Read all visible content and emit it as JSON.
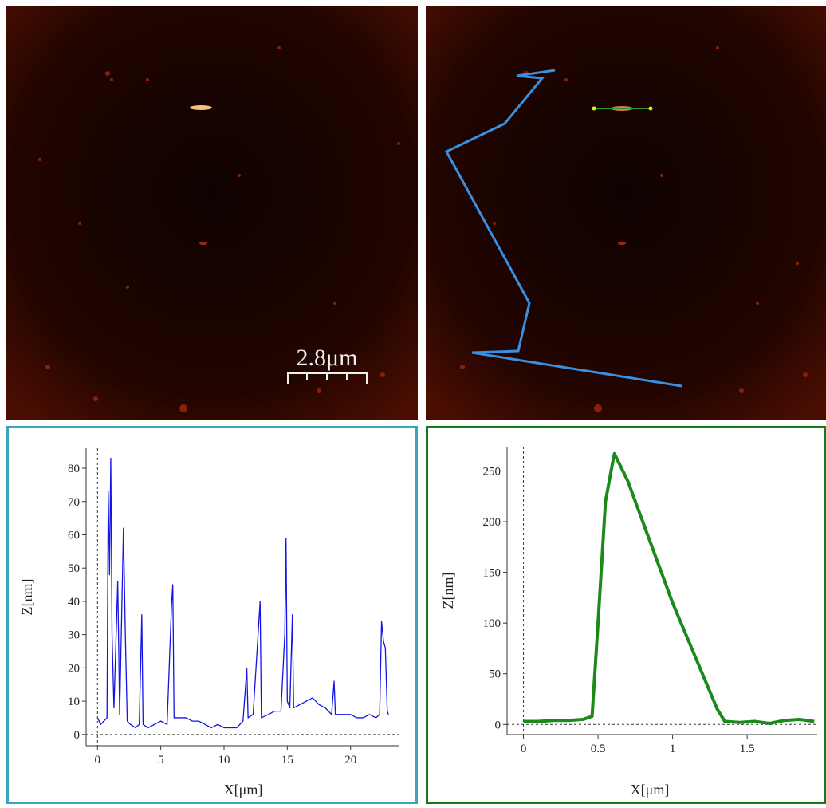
{
  "images": {
    "scale_bar_label": "2.8μm"
  },
  "chart_data": [
    {
      "type": "line",
      "x_label": "X[μm]",
      "y_label": "Z[nm]",
      "xlim": [
        -0.9,
        23.8
      ],
      "ylim": [
        -3.4,
        86
      ],
      "xticks": [
        0,
        5,
        10,
        15,
        20
      ],
      "yticks": [
        0,
        10,
        20,
        30,
        40,
        50,
        60,
        70,
        80
      ],
      "series": [
        {
          "color": "#1414e6",
          "x": [
            0.0,
            0.25,
            0.5,
            0.75,
            0.85,
            0.95,
            1.05,
            1.15,
            1.3,
            1.6,
            1.75,
            2.05,
            2.2,
            2.35,
            2.6,
            3.0,
            3.3,
            3.5,
            3.6,
            4.0,
            4.5,
            5.0,
            5.5,
            5.85,
            5.95,
            6.05,
            6.5,
            7.0,
            7.5,
            8.0,
            8.5,
            9.0,
            9.5,
            10.0,
            10.5,
            11.0,
            11.5,
            11.8,
            11.9,
            12.3,
            12.85,
            12.95,
            13.5,
            14.0,
            14.5,
            14.8,
            14.9,
            15.0,
            15.2,
            15.4,
            15.5,
            16.0,
            16.5,
            17.0,
            17.5,
            18.0,
            18.5,
            18.7,
            18.8,
            19.5,
            20.0,
            20.5,
            21.0,
            21.5,
            22.0,
            22.3,
            22.45,
            22.6,
            22.75,
            22.9,
            23.0
          ],
          "values": [
            5,
            3,
            4,
            5,
            73,
            48,
            83,
            30,
            8,
            46,
            6,
            62,
            30,
            4,
            3,
            2,
            3,
            36,
            3,
            2,
            3,
            4,
            3,
            39,
            45,
            5,
            5,
            5,
            4,
            4,
            3,
            2,
            3,
            2,
            2,
            2,
            4,
            20,
            5,
            6,
            40,
            5,
            6,
            7,
            7,
            30,
            59,
            10,
            8,
            36,
            8,
            9,
            10,
            11,
            9,
            8,
            6,
            16,
            6,
            6,
            6,
            5,
            5,
            6,
            5,
            6,
            34,
            28,
            26,
            7,
            6
          ]
        }
      ]
    },
    {
      "type": "line",
      "x_label": "X[μm]",
      "y_label": "Z[nm]",
      "xlim": [
        -0.11,
        1.97
      ],
      "ylim": [
        -10,
        274
      ],
      "xticks": [
        0,
        0.5,
        1,
        1.5
      ],
      "yticks": [
        0,
        50,
        100,
        150,
        200,
        250
      ],
      "series": [
        {
          "color": "#1a8a1a",
          "x": [
            0,
            0.1,
            0.2,
            0.3,
            0.4,
            0.46,
            0.5,
            0.55,
            0.6,
            0.61,
            0.7,
            0.8,
            0.9,
            1.0,
            1.1,
            1.2,
            1.3,
            1.35,
            1.45,
            1.55,
            1.65,
            1.75,
            1.85,
            1.95
          ],
          "values": [
            3,
            3,
            4,
            4,
            5,
            8,
            100,
            220,
            260,
            267,
            240,
            200,
            160,
            120,
            85,
            50,
            15,
            3,
            2,
            3,
            1,
            4,
            5,
            3
          ]
        }
      ]
    }
  ]
}
